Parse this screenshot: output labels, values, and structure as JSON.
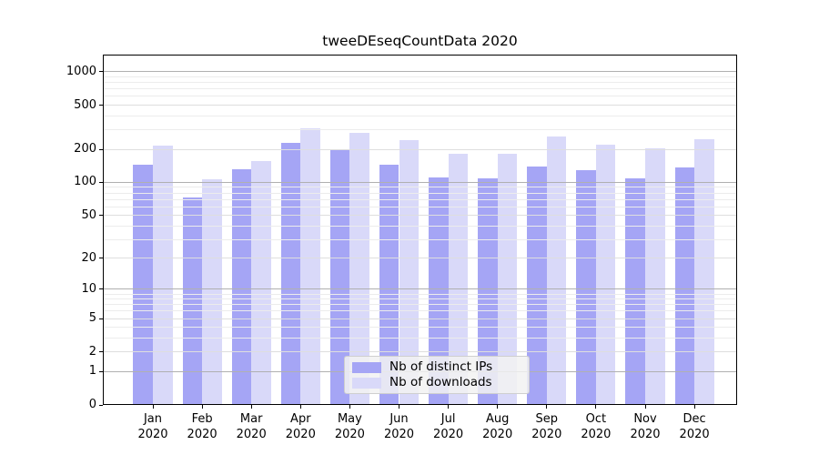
{
  "figure": {
    "title": "tweeDEseqCountData 2020"
  },
  "chart_data": {
    "type": "bar",
    "title": "tweeDEseqCountData 2020",
    "yscale": "log1p",
    "grid": "horizontal",
    "legend_position": "lower center",
    "months": [
      "Jan",
      "Feb",
      "Mar",
      "Apr",
      "May",
      "Jun",
      "Jul",
      "Aug",
      "Sep",
      "Oct",
      "Nov",
      "Dec"
    ],
    "year_label": "2020",
    "y_ticks": [
      0,
      1,
      2,
      5,
      10,
      20,
      50,
      100,
      200,
      500,
      1000
    ],
    "ylim": [
      0,
      1430
    ],
    "series": [
      {
        "name": "Nb of distinct IPs",
        "color": "#a5a5f5",
        "values": [
          145,
          73,
          132,
          228,
          199,
          145,
          110,
          108,
          139,
          130,
          109,
          136
        ]
      },
      {
        "name": "Nb of downloads",
        "color": "#d9d9f9",
        "values": [
          216,
          107,
          156,
          310,
          281,
          240,
          182,
          182,
          261,
          222,
          203,
          245
        ]
      }
    ]
  }
}
